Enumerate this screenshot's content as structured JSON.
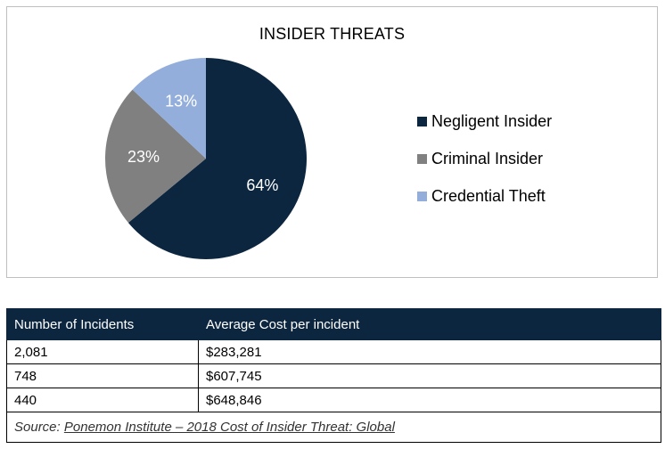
{
  "chart_data": {
    "type": "pie",
    "title": "INSIDER THREATS",
    "slices": [
      {
        "label": "Negligent Insider",
        "value": 64,
        "display": "64%",
        "color": "#0d2640"
      },
      {
        "label": "Criminal Insider",
        "value": 23,
        "display": "23%",
        "color": "#808080"
      },
      {
        "label": "Credential Theft",
        "value": 13,
        "display": "13%",
        "color": "#94aedc"
      }
    ],
    "legend_position": "right"
  },
  "table": {
    "headers": [
      "Number of Incidents",
      "Average Cost per incident"
    ],
    "rows": [
      [
        "2,081",
        "$283,281"
      ],
      [
        "748",
        "$607,745"
      ],
      [
        "440",
        "$648,846"
      ]
    ],
    "source_prefix": "Source:",
    "source_text": "Ponemon Institute – 2018 Cost of Insider Threat: Global"
  }
}
